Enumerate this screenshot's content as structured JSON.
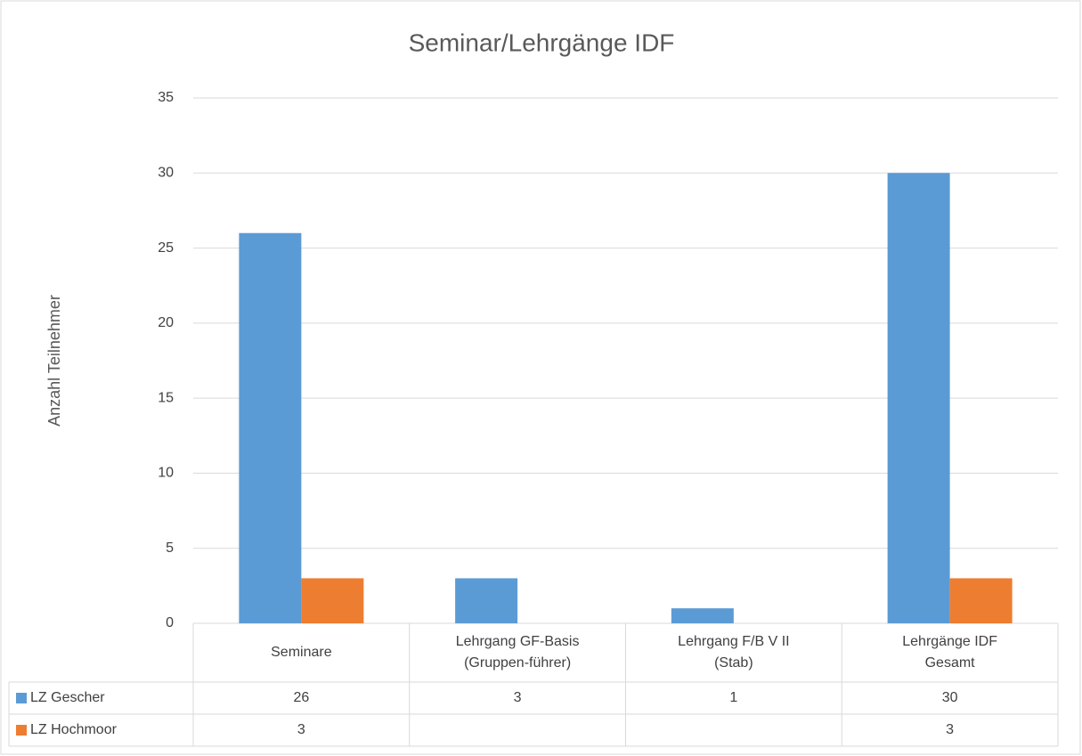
{
  "chart_data": {
    "type": "bar",
    "title": "Seminar/Lehrgänge IDF",
    "y_label": "Anzahl Teilnehmer",
    "categories": [
      "Seminare",
      "Lehrgang GF-Basis (Gruppen-führer)",
      "Lehrgang F/B V II (Stab)",
      "Lehrgänge IDF Gesamt"
    ],
    "series": [
      {
        "name": "LZ Gescher",
        "color": "#5b9bd5",
        "values": [
          26,
          3,
          1,
          30
        ]
      },
      {
        "name": "LZ Hochmoor",
        "color": "#ed7d31",
        "values": [
          3,
          null,
          null,
          3
        ]
      }
    ],
    "ylim": [
      0,
      35
    ],
    "yticks": [
      0,
      5,
      10,
      15,
      20,
      25,
      30,
      35
    ],
    "grid": true,
    "data_table": true
  }
}
